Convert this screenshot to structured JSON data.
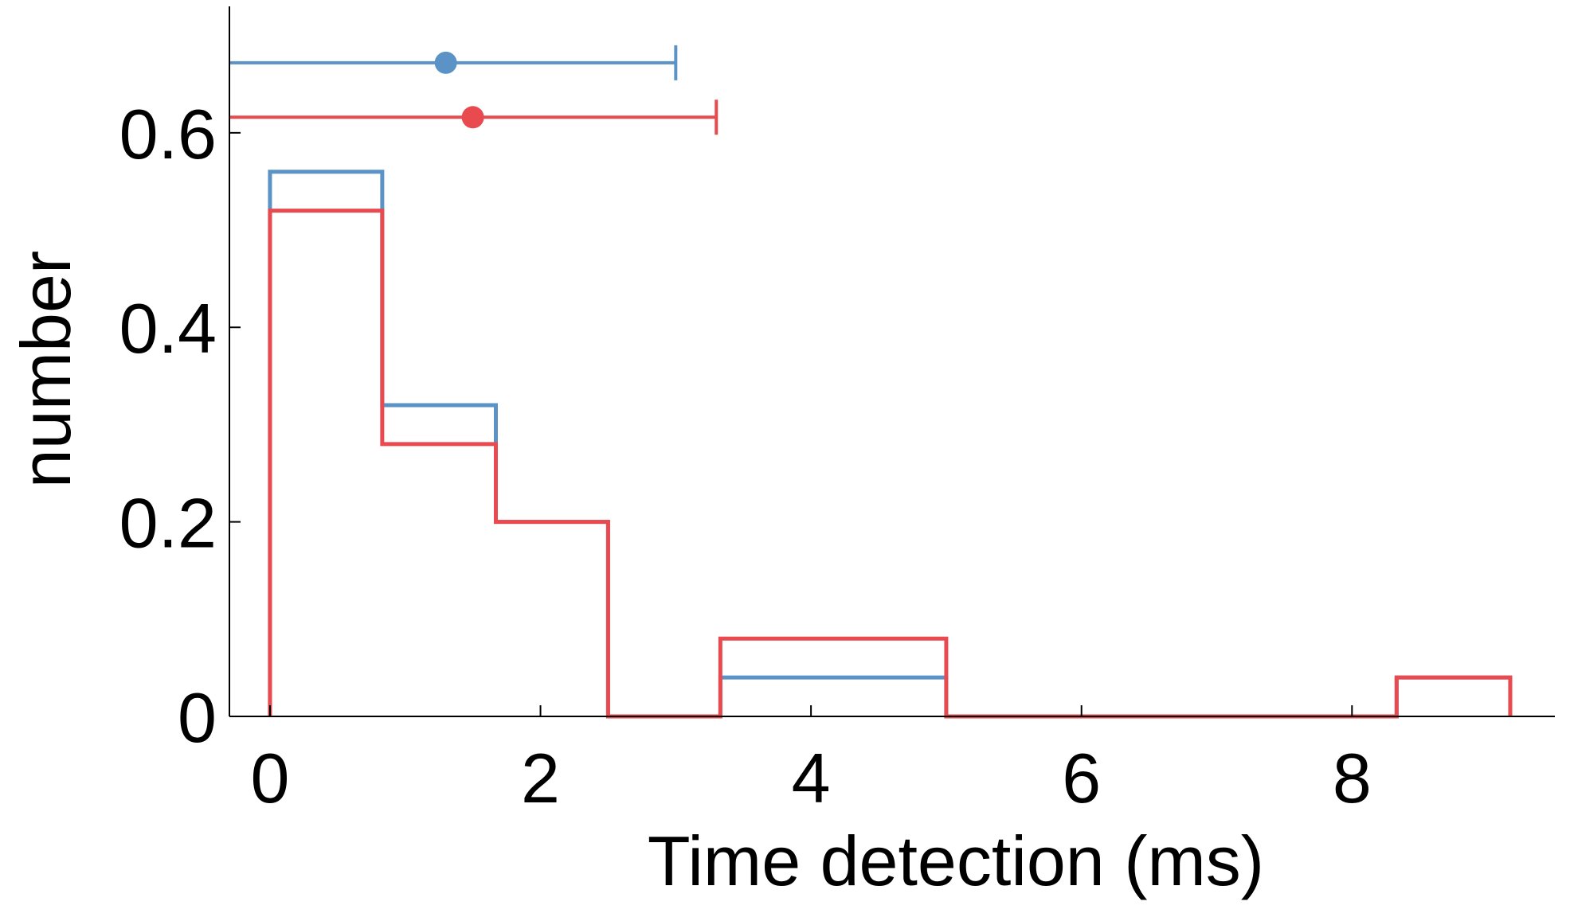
{
  "chart_data": {
    "type": "histogram",
    "title": "",
    "xlabel": "Time detection (ms)",
    "ylabel": "number",
    "xlim": [
      -0.3,
      9.5
    ],
    "ylim": [
      0,
      0.73
    ],
    "xticks": [
      0,
      2,
      4,
      6,
      8
    ],
    "yticks": [
      0,
      0.2,
      0.4,
      0.6
    ],
    "xtick_labels": [
      "0",
      "2",
      "4",
      "6",
      "8"
    ],
    "ytick_labels": [
      "0",
      "0.2",
      "0.4",
      "0.6"
    ],
    "grid": false,
    "bin_edges": [
      0,
      0.83,
      1.67,
      2.5,
      3.33,
      5.0,
      8.33,
      9.17
    ],
    "series": [
      {
        "color": "#5b93c6",
        "values": [
          0.56,
          0.32,
          0.2,
          0.0,
          0.04,
          0.0,
          0.04
        ],
        "errorbar": {
          "y": 0.672,
          "center": 1.3,
          "min": -0.3,
          "max": 3.0
        }
      },
      {
        "color": "#e84a4f",
        "values": [
          0.52,
          0.28,
          0.2,
          0.0,
          0.08,
          0.0,
          0.04
        ],
        "errorbar": {
          "y": 0.616,
          "center": 1.5,
          "min": -0.3,
          "max": 3.3
        }
      }
    ]
  }
}
